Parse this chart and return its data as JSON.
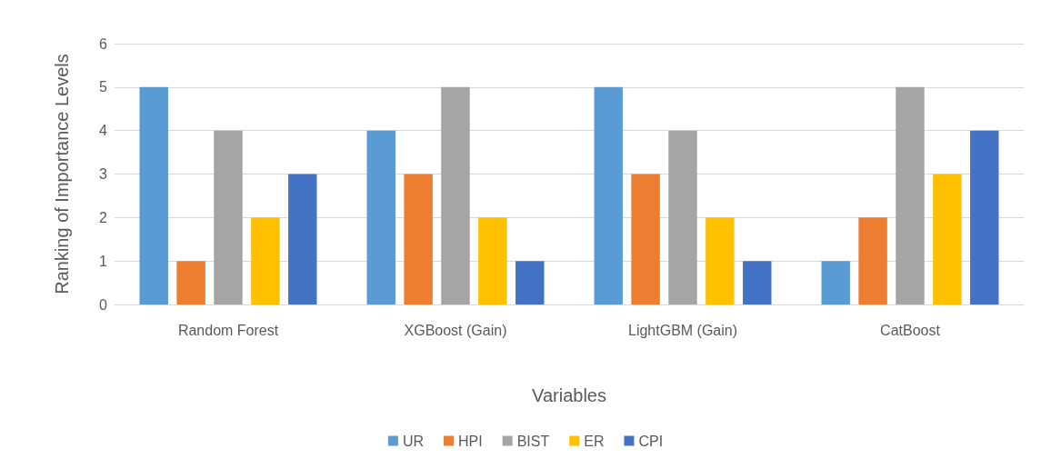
{
  "chart_data": {
    "type": "bar",
    "xlabel": "Variables",
    "ylabel": "Ranking of Importance Levels",
    "categories": [
      "Random Forest",
      "XGBoost (Gain)",
      "LightGBM (Gain)",
      "CatBoost"
    ],
    "series": [
      {
        "name": "UR",
        "color": "#5b9bd5",
        "values": [
          5,
          4,
          5,
          1
        ]
      },
      {
        "name": "HPI",
        "color": "#ed7d31",
        "values": [
          1,
          3,
          3,
          2
        ]
      },
      {
        "name": "BIST",
        "color": "#a5a5a5",
        "values": [
          4,
          5,
          4,
          5
        ]
      },
      {
        "name": "ER",
        "color": "#ffc000",
        "values": [
          2,
          2,
          2,
          3
        ]
      },
      {
        "name": "CPI",
        "color": "#4472c4",
        "values": [
          3,
          1,
          1,
          4
        ]
      }
    ],
    "ylim": [
      0,
      6
    ],
    "yticks": [
      0,
      1,
      2,
      3,
      4,
      5,
      6
    ],
    "grid": "y",
    "legend": "bottom"
  }
}
